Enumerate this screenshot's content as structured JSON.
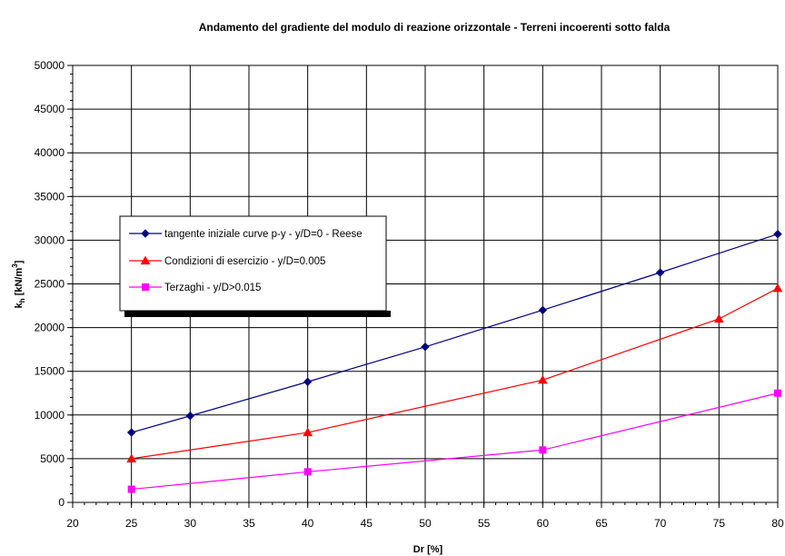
{
  "chart_data": {
    "type": "line",
    "title": "Andamento del gradiente del modulo di reazione orizzontale - Terreni incoerenti sotto falda",
    "xlabel": "Dr [%]",
    "ylabel": "kh [kN/m3]",
    "ylabel_parts": {
      "main": "k",
      "sub": "h",
      "unit_open": " [kN/m",
      "sup": "3",
      "unit_close": "]"
    },
    "xlim": [
      20,
      80
    ],
    "ylim": [
      0,
      50000
    ],
    "x_ticks": [
      20,
      25,
      30,
      35,
      40,
      45,
      50,
      55,
      60,
      65,
      70,
      75,
      80
    ],
    "y_ticks": [
      0,
      5000,
      10000,
      15000,
      20000,
      25000,
      30000,
      35000,
      40000,
      45000,
      50000
    ],
    "grid": true,
    "legend_position": "left",
    "series": [
      {
        "name": "tangente iniziale curve p-y - y/D=0 - Reese",
        "color": "#000080",
        "marker": "diamond",
        "x": [
          25,
          30,
          40,
          50,
          60,
          70,
          80
        ],
        "y": [
          8000,
          9900,
          13800,
          17800,
          22000,
          26300,
          30700
        ]
      },
      {
        "name": "Condizioni di esercizio - y/D=0.005",
        "color": "#ff0000",
        "marker": "triangle",
        "x": [
          25,
          40,
          60,
          75,
          80
        ],
        "y": [
          5000,
          8000,
          14000,
          21000,
          24500
        ]
      },
      {
        "name": "Terzaghi - y/D>0.015",
        "color": "#ff00ff",
        "marker": "square",
        "x": [
          25,
          40,
          60,
          80
        ],
        "y": [
          1500,
          3500,
          6000,
          12500
        ]
      }
    ]
  }
}
